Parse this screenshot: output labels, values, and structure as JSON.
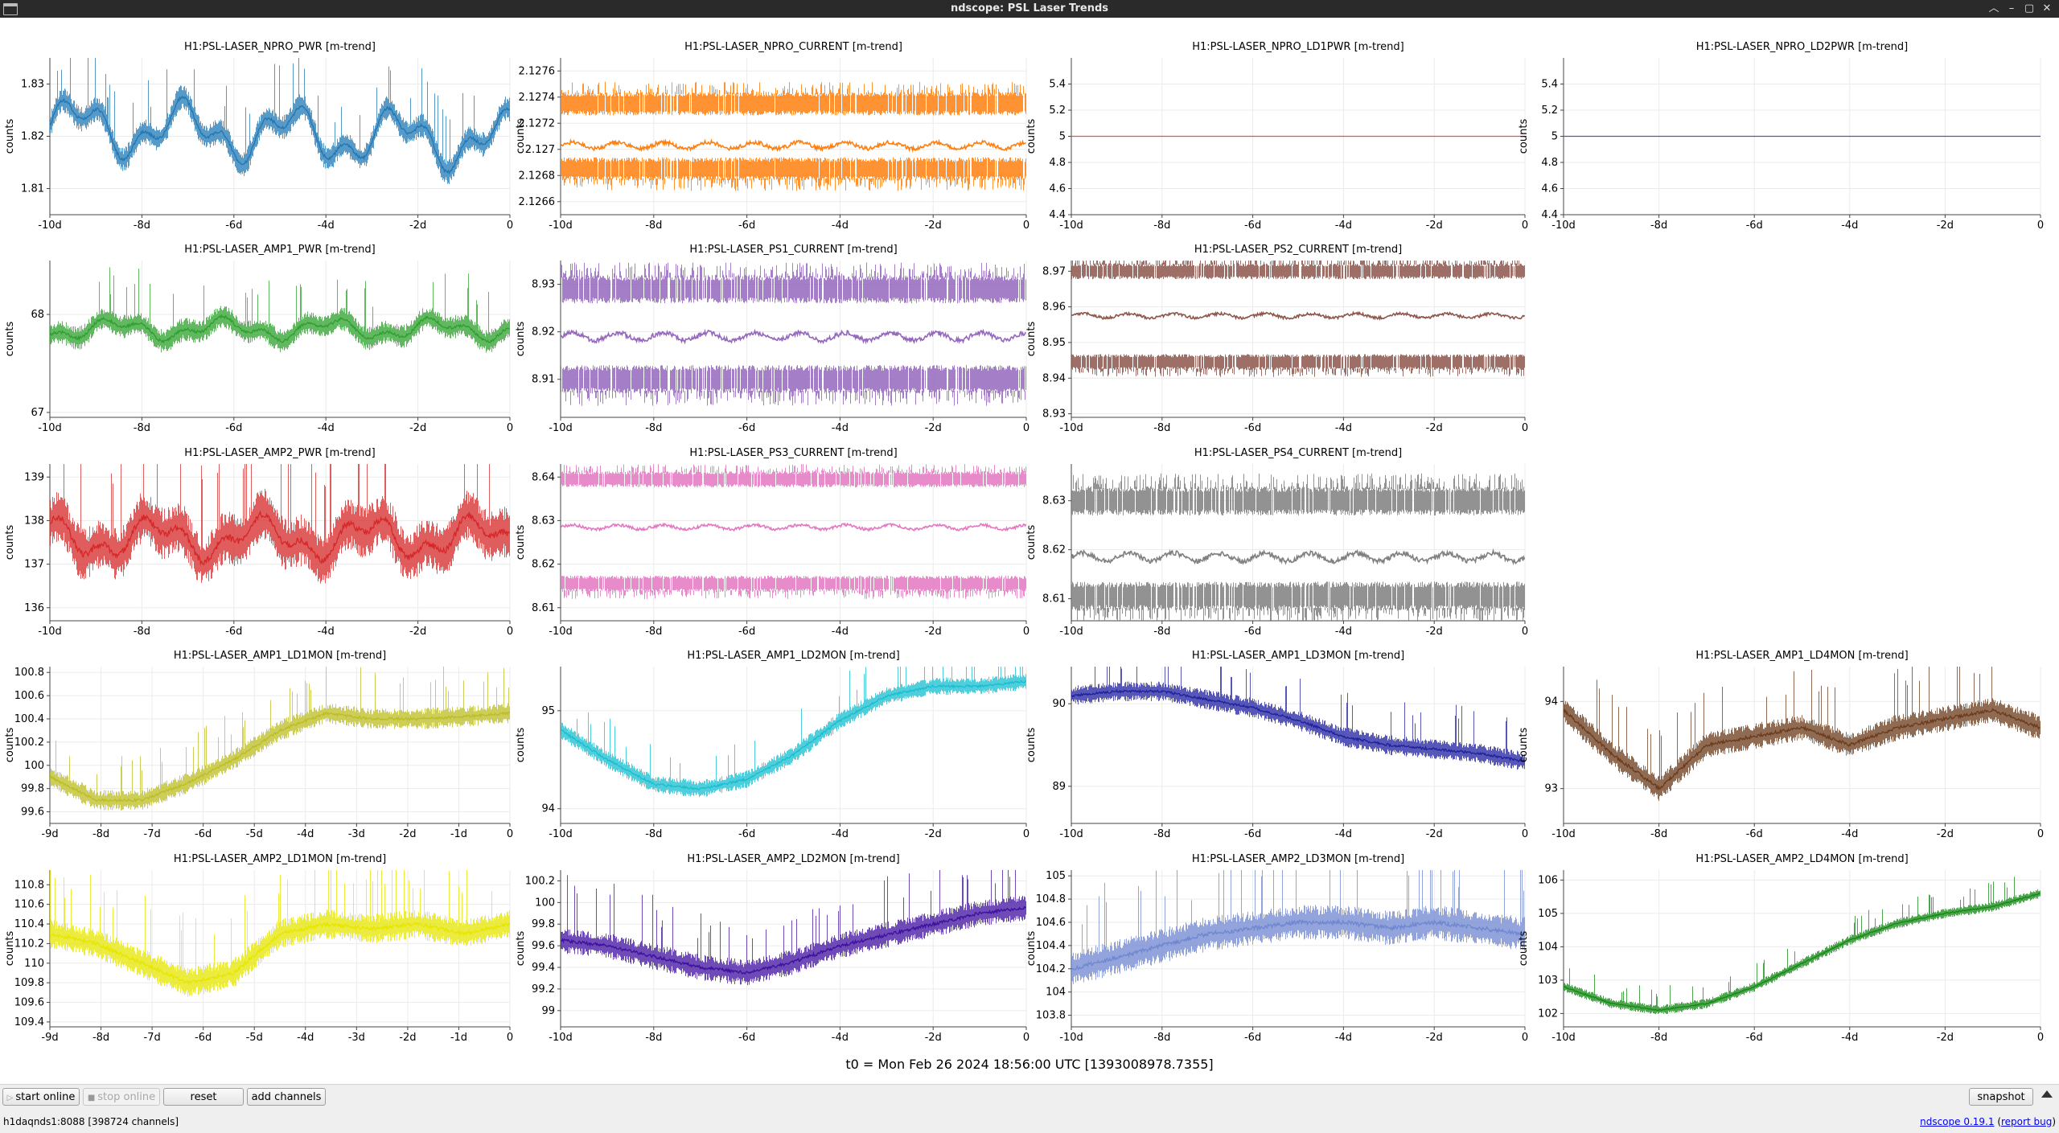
{
  "window": {
    "title": "ndscope: PSL Laser Trends",
    "buttons": [
      "︿",
      "–",
      "▢",
      "✕"
    ]
  },
  "t0_label": "t0 = Mon Feb 26 2024 18:56:00 UTC [1393008978.7355]",
  "toolbar": {
    "start_online": "start online",
    "stop_online": "stop online",
    "reset": "reset",
    "add_channels": "add channels",
    "snapshot": "snapshot"
  },
  "status": {
    "server": "h1daqnds1:8088  [398724 channels]",
    "version": "ndscope 0.19.1",
    "report": "report bug"
  },
  "ylabel": "counts",
  "plots": [
    {
      "title": "H1:PSL-LASER_NPRO_PWR [m-trend]",
      "color": "#1f77b4",
      "ylim": [
        1.805,
        1.835
      ],
      "yticks": [
        "1.81",
        "1.82",
        "1.83"
      ],
      "xticks": [
        "-10d",
        "-8d",
        "-6d",
        "-4d",
        "-2d",
        "0"
      ],
      "pattern": "noisy_trend",
      "base": 1.822,
      "drift": -0.003,
      "amp": 0.004,
      "band": 0.004
    },
    {
      "title": "H1:PSL-LASER_NPRO_CURRENT [m-trend]",
      "color": "#ff7f0e",
      "ylim": [
        2.1265,
        2.1277
      ],
      "yticks": [
        "2.1266",
        "2.1268",
        "2.127",
        "2.1272",
        "2.1274",
        "2.1276"
      ],
      "xticks": [
        "-10d",
        "-8d",
        "-6d",
        "-4d",
        "-2d",
        "0"
      ],
      "pattern": "bands3",
      "levels": [
        2.12735,
        2.12703,
        2.12685
      ],
      "band": 0.00012
    },
    {
      "title": "H1:PSL-LASER_NPRO_LD1PWR [m-trend]",
      "color": "#ff4444",
      "ylim": [
        4.4,
        5.6
      ],
      "yticks": [
        "4.4",
        "4.6",
        "4.8",
        "5",
        "5.2",
        "5.4"
      ],
      "xticks": [
        "-10d",
        "-8d",
        "-6d",
        "-4d",
        "-2d",
        "0"
      ],
      "pattern": "flat",
      "level": 5
    },
    {
      "title": "H1:PSL-LASER_NPRO_LD2PWR [m-trend]",
      "color": "#5555aa",
      "ylim": [
        4.4,
        5.6
      ],
      "yticks": [
        "4.4",
        "4.6",
        "4.8",
        "5",
        "5.2",
        "5.4"
      ],
      "xticks": [
        "-10d",
        "-8d",
        "-6d",
        "-4d",
        "-2d",
        "0"
      ],
      "pattern": "flat",
      "level": 5
    },
    {
      "title": "H1:PSL-LASER_AMP1_PWR [m-trend]",
      "color": "#2ca02c",
      "ylim": [
        66.95,
        68.55
      ],
      "yticks": [
        "67",
        "68"
      ],
      "xticks": [
        "-10d",
        "-8d",
        "-6d",
        "-4d",
        "-2d",
        "0"
      ],
      "pattern": "noisy_trend",
      "base": 67.85,
      "drift": 0,
      "amp": 0.08,
      "band": 0.2
    },
    {
      "title": "H1:PSL-LASER_PS1_CURRENT [m-trend]",
      "color": "#9467bd",
      "ylim": [
        8.902,
        8.935
      ],
      "yticks": [
        "8.91",
        "8.92",
        "8.93"
      ],
      "xticks": [
        "-10d",
        "-8d",
        "-6d",
        "-4d",
        "-2d",
        "0"
      ],
      "pattern": "bands3",
      "levels": [
        8.929,
        8.919,
        8.91
      ],
      "band": 0.004
    },
    {
      "title": "H1:PSL-LASER_PS2_CURRENT [m-trend]",
      "color": "#8c564b",
      "ylim": [
        8.929,
        8.973
      ],
      "yticks": [
        "8.93",
        "8.94",
        "8.95",
        "8.96",
        "8.97"
      ],
      "xticks": [
        "-10d",
        "-8d",
        "-6d",
        "-4d",
        "-2d",
        "0"
      ],
      "pattern": "bands3",
      "levels": [
        8.97,
        8.9575,
        8.9445
      ],
      "band": 0.003
    },
    null,
    {
      "title": "H1:PSL-LASER_AMP2_PWR [m-trend]",
      "color": "#d62728",
      "ylim": [
        135.7,
        139.3
      ],
      "yticks": [
        "136",
        "137",
        "138",
        "139"
      ],
      "xticks": [
        "-10d",
        "-8d",
        "-6d",
        "-4d",
        "-2d",
        "0"
      ],
      "pattern": "noisy_trend",
      "base": 137.6,
      "drift": 0,
      "amp": 0.35,
      "band": 1.0
    },
    {
      "title": "H1:PSL-LASER_PS3_CURRENT [m-trend]",
      "color": "#e377c2",
      "ylim": [
        8.607,
        8.643
      ],
      "yticks": [
        "8.61",
        "8.62",
        "8.63",
        "8.64"
      ],
      "xticks": [
        "-10d",
        "-8d",
        "-6d",
        "-4d",
        "-2d",
        "0"
      ],
      "pattern": "bands3",
      "levels": [
        8.6395,
        8.6285,
        8.6155
      ],
      "band": 0.0025
    },
    {
      "title": "H1:PSL-LASER_PS4_CURRENT [m-trend]",
      "color": "#7f7f7f",
      "ylim": [
        8.6055,
        8.6375
      ],
      "yticks": [
        "8.61",
        "8.62",
        "8.63"
      ],
      "xticks": [
        "-10d",
        "-8d",
        "-6d",
        "-4d",
        "-2d",
        "0"
      ],
      "pattern": "bands3",
      "levels": [
        8.63,
        8.6185,
        8.6105
      ],
      "band": 0.004
    },
    null,
    {
      "title": "H1:PSL-LASER_AMP1_LD1MON [m-trend]",
      "color": "#bcbd22",
      "ylim": [
        99.5,
        100.85
      ],
      "yticks": [
        "99.6",
        "99.8",
        "100",
        "100.2",
        "100.4",
        "100.6",
        "100.8"
      ],
      "xticks": [
        "-9d",
        "-8d",
        "-7d",
        "-6d",
        "-5d",
        "-4d",
        "-3d",
        "-2d",
        "-1d",
        "0"
      ],
      "pattern": "curve",
      "curve": [
        99.9,
        99.7,
        99.7,
        99.85,
        100.05,
        100.3,
        100.45,
        100.4,
        100.4,
        100.42,
        100.45
      ],
      "band": 0.15
    },
    {
      "title": "H1:PSL-LASER_AMP1_LD2MON [m-trend]",
      "color": "#17becf",
      "ylim": [
        93.85,
        95.45
      ],
      "yticks": [
        "94",
        "95"
      ],
      "xticks": [
        "-10d",
        "-8d",
        "-6d",
        "-4d",
        "-2d",
        "0"
      ],
      "pattern": "curve",
      "curve": [
        94.8,
        94.5,
        94.25,
        94.2,
        94.3,
        94.55,
        94.9,
        95.15,
        95.25,
        95.25,
        95.3
      ],
      "band": 0.15
    },
    {
      "title": "H1:PSL-LASER_AMP1_LD3MON [m-trend]",
      "color": "#1f1f9f",
      "ylim": [
        88.55,
        90.45
      ],
      "yticks": [
        "89",
        "90"
      ],
      "xticks": [
        "-10d",
        "-8d",
        "-6d",
        "-4d",
        "-2d",
        "0"
      ],
      "pattern": "curve",
      "curve": [
        90.1,
        90.15,
        90.15,
        90.05,
        89.95,
        89.8,
        89.6,
        89.5,
        89.45,
        89.4,
        89.3
      ],
      "band": 0.2
    },
    {
      "title": "H1:PSL-LASER_AMP1_LD4MON [m-trend]",
      "color": "#6b3a1a",
      "ylim": [
        92.6,
        94.4
      ],
      "yticks": [
        "93",
        "94"
      ],
      "xticks": [
        "-10d",
        "-8d",
        "-6d",
        "-4d",
        "-2d",
        "0"
      ],
      "pattern": "curve",
      "curve": [
        93.9,
        93.4,
        93.0,
        93.5,
        93.6,
        93.7,
        93.5,
        93.7,
        93.8,
        93.9,
        93.7
      ],
      "band": 0.25
    },
    {
      "title": "H1:PSL-LASER_AMP2_LD1MON [m-trend]",
      "color": "#e6e600",
      "ylim": [
        109.35,
        110.95
      ],
      "yticks": [
        "109.4",
        "109.6",
        "109.8",
        "110",
        "110.2",
        "110.4",
        "110.6",
        "110.8"
      ],
      "xticks": [
        "-9d",
        "-8d",
        "-7d",
        "-6d",
        "-5d",
        "-4d",
        "-3d",
        "-2d",
        "-1d",
        "0"
      ],
      "pattern": "curve",
      "curve": [
        110.3,
        110.2,
        110.0,
        109.8,
        109.9,
        110.3,
        110.4,
        110.35,
        110.4,
        110.3,
        110.4
      ],
      "band": 0.25
    },
    {
      "title": "H1:PSL-LASER_AMP2_LD2MON [m-trend]",
      "color": "#3d0f9f",
      "ylim": [
        98.85,
        100.3
      ],
      "yticks": [
        "99",
        "99.2",
        "99.4",
        "99.6",
        "99.8",
        "100",
        "100.2"
      ],
      "xticks": [
        "-10d",
        "-8d",
        "-6d",
        "-4d",
        "-2d",
        "0"
      ],
      "pattern": "curve",
      "curve": [
        99.65,
        99.6,
        99.5,
        99.4,
        99.35,
        99.45,
        99.6,
        99.7,
        99.8,
        99.9,
        99.95
      ],
      "band": 0.2
    },
    {
      "title": "H1:PSL-LASER_AMP2_LD3MON [m-trend]",
      "color": "#6f86d0",
      "ylim": [
        103.7,
        105.05
      ],
      "yticks": [
        "103.8",
        "104",
        "104.2",
        "104.4",
        "104.6",
        "104.8",
        "105"
      ],
      "xticks": [
        "-10d",
        "-8d",
        "-6d",
        "-4d",
        "-2d",
        "0"
      ],
      "pattern": "curve",
      "curve": [
        104.2,
        104.3,
        104.4,
        104.5,
        104.55,
        104.6,
        104.6,
        104.55,
        104.6,
        104.55,
        104.5
      ],
      "band": 0.25
    },
    {
      "title": "H1:PSL-LASER_AMP2_LD4MON [m-trend]",
      "color": "#118811",
      "ylim": [
        101.6,
        106.3
      ],
      "yticks": [
        "102",
        "103",
        "104",
        "105",
        "106"
      ],
      "xticks": [
        "-10d",
        "-8d",
        "-6d",
        "-4d",
        "-2d",
        "0"
      ],
      "pattern": "curve",
      "curve": [
        102.8,
        102.3,
        102.1,
        102.3,
        102.8,
        103.5,
        104.2,
        104.7,
        105.0,
        105.2,
        105.6
      ],
      "band": 0.25
    }
  ]
}
